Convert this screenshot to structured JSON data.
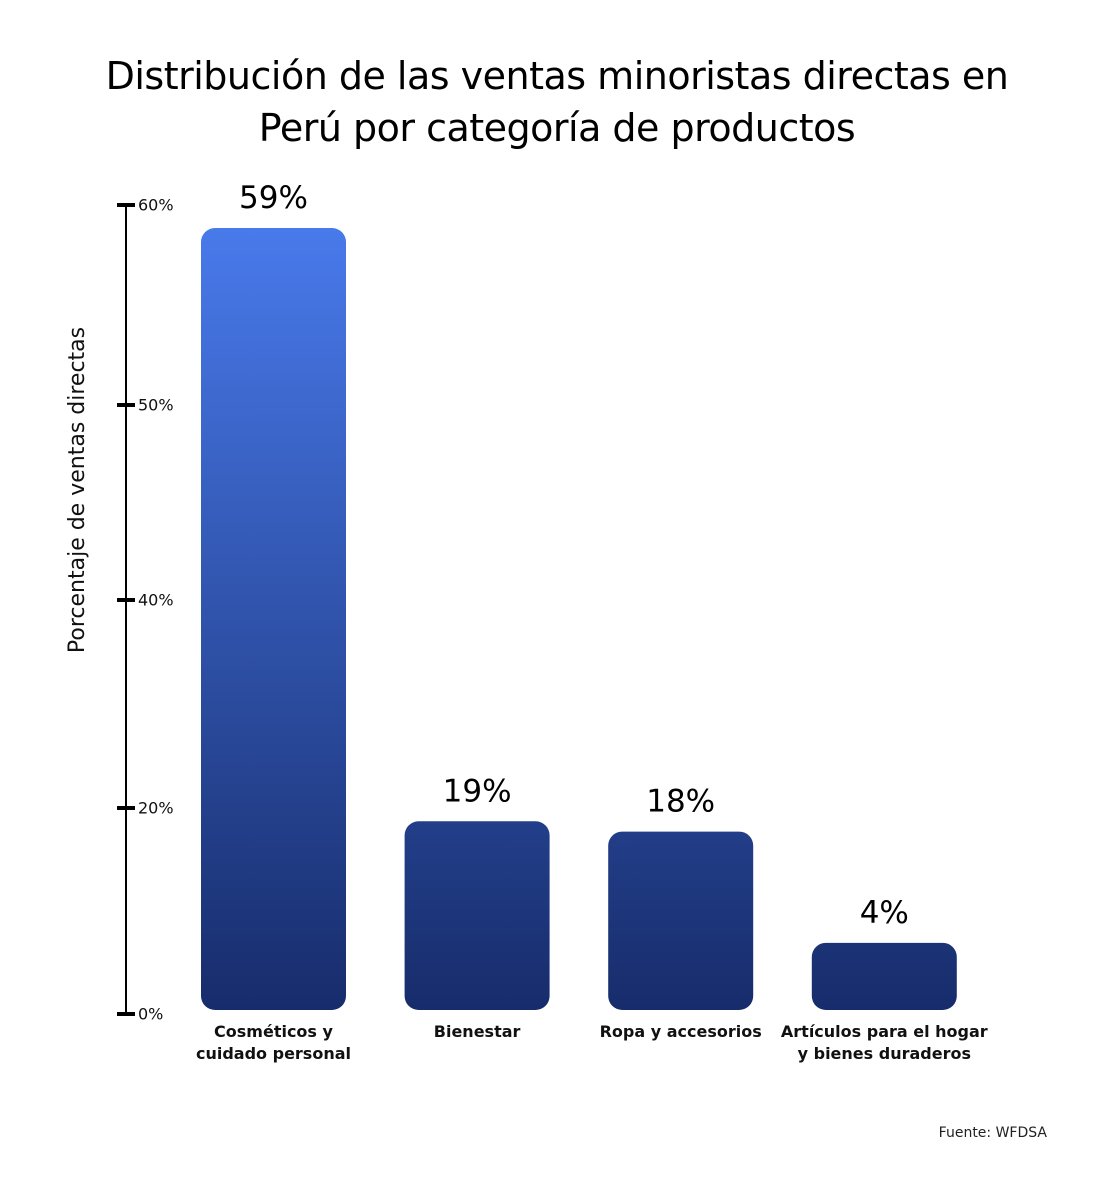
{
  "chart_data": {
    "type": "bar",
    "title_lines": [
      "Distribución de las ventas minoristas directas en",
      "Perú por categoría de productos"
    ],
    "ylabel": "Porcentaje de ventas directas",
    "xlabel": "",
    "ylim": [
      0,
      60
    ],
    "y_ticks": [
      {
        "value": 0,
        "label": "0%"
      },
      {
        "value": 20,
        "label": "20%"
      },
      {
        "value": 40,
        "label": "40%"
      },
      {
        "value": 50,
        "label": "50%"
      },
      {
        "value": 60,
        "label": "60%"
      }
    ],
    "categories": [
      [
        "Cosméticos y",
        "cuidado personal"
      ],
      [
        "Bienestar"
      ],
      [
        "Ropa y accesorios"
      ],
      [
        "Artículos para el hogar",
        "y bienes duraderos"
      ]
    ],
    "values": [
      59,
      19,
      18,
      4
    ],
    "data_labels": [
      "59%",
      "19%",
      "18%",
      "4%"
    ],
    "grid": false,
    "legend": "none",
    "colors": {
      "bar_top": "#4A7CEE",
      "bar_bottom": "#172C6B",
      "axis": "#000000"
    }
  },
  "source": "Fuente: WFDSA"
}
